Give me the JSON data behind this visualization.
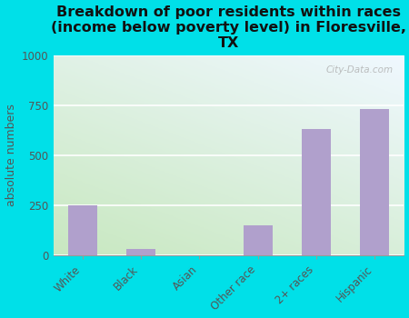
{
  "categories": [
    "White",
    "Black",
    "Asian",
    "Other race",
    "2+ races",
    "Hispanic"
  ],
  "values": [
    250,
    35,
    0,
    150,
    630,
    730
  ],
  "bar_color": "#b0a0cc",
  "title": "Breakdown of poor residents within races\n(income below poverty level) in Floresville,\nTX",
  "ylabel": "absolute numbers",
  "ylim": [
    0,
    1000
  ],
  "yticks": [
    0,
    250,
    500,
    750,
    1000
  ],
  "background_outer": "#00e0e8",
  "bg_bottom_left": "#c8e8c0",
  "bg_top_right": "#f0f8ff",
  "watermark": "City-Data.com",
  "title_fontsize": 11.5,
  "ylabel_fontsize": 9,
  "tick_fontsize": 8.5
}
